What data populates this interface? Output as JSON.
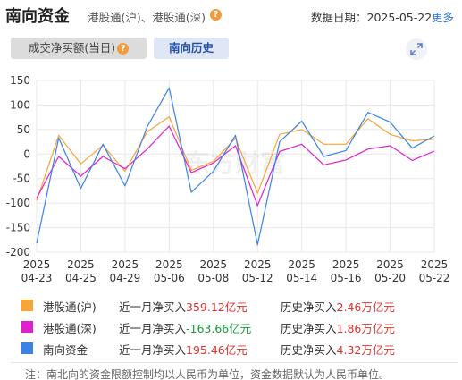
{
  "header": {
    "title": "南向资金",
    "subtitle": "港股通(沪)、港股通(深)",
    "help_glyph": "?",
    "date_text": "数据日期：2025-05-22",
    "more_label": "更多"
  },
  "tabs": {
    "flow_label": "成交净买额(当日)",
    "history_label": "南向历史"
  },
  "watermark": "东方财富",
  "colors": {
    "hu": "#f7a536",
    "shen": "#e020d0",
    "south": "#3c82e6",
    "grid": "#e8e8e8"
  },
  "chart_data": {
    "type": "line",
    "ylim": [
      -200,
      150
    ],
    "yticks": [
      150,
      100,
      50,
      0,
      -50,
      -100,
      -150,
      -200
    ],
    "x_labels": [
      [
        "2025",
        "04-23"
      ],
      [
        "2025",
        "04-25"
      ],
      [
        "2025",
        "04-29"
      ],
      [
        "2025",
        "05-06"
      ],
      [
        "2025",
        "05-08"
      ],
      [
        "2025",
        "05-12"
      ],
      [
        "2025",
        "05-14"
      ],
      [
        "2025",
        "05-16"
      ],
      [
        "2025",
        "05-20"
      ],
      [
        "2025",
        "05-22"
      ]
    ],
    "series": [
      {
        "name": "港股通(沪)",
        "color": "#f7a536",
        "values": [
          -95,
          38,
          -20,
          18,
          -35,
          45,
          76,
          -33,
          -15,
          32,
          -80,
          40,
          50,
          20,
          20,
          72,
          40,
          27,
          30
        ]
      },
      {
        "name": "港股通(深)",
        "color": "#e020d0",
        "values": [
          -90,
          -5,
          -45,
          -5,
          -30,
          10,
          57,
          -38,
          -18,
          17,
          -105,
          5,
          20,
          -22,
          -12,
          10,
          17,
          -13,
          6
        ]
      },
      {
        "name": "南向资金",
        "color": "#3c82e6",
        "values": [
          -182,
          33,
          -70,
          20,
          -65,
          55,
          135,
          -78,
          -35,
          38,
          -185,
          25,
          67,
          -5,
          7,
          85,
          65,
          12,
          37
        ]
      }
    ]
  },
  "legend": [
    {
      "name": "港股通(沪)",
      "color": "#f7a536",
      "month_label": "近一月净买入",
      "month_value": "359.12亿元",
      "month_trend": "up",
      "hist_label": "历史净买入",
      "hist_value": "2.46万亿元"
    },
    {
      "name": "港股通(深)",
      "color": "#e020d0",
      "month_label": "近一月净买入",
      "month_value": "-163.66亿元",
      "month_trend": "down",
      "hist_label": "历史净买入",
      "hist_value": "1.86万亿元"
    },
    {
      "name": "南向资金",
      "color": "#3c82e6",
      "month_label": "近一月净买入",
      "month_value": "195.46亿元",
      "month_trend": "up",
      "hist_label": "历史净买入",
      "hist_value": "4.32万亿元"
    }
  ],
  "note": "注：南北向的资金限额控制均以人民币为单位，资金数据默认为人民币单位。"
}
